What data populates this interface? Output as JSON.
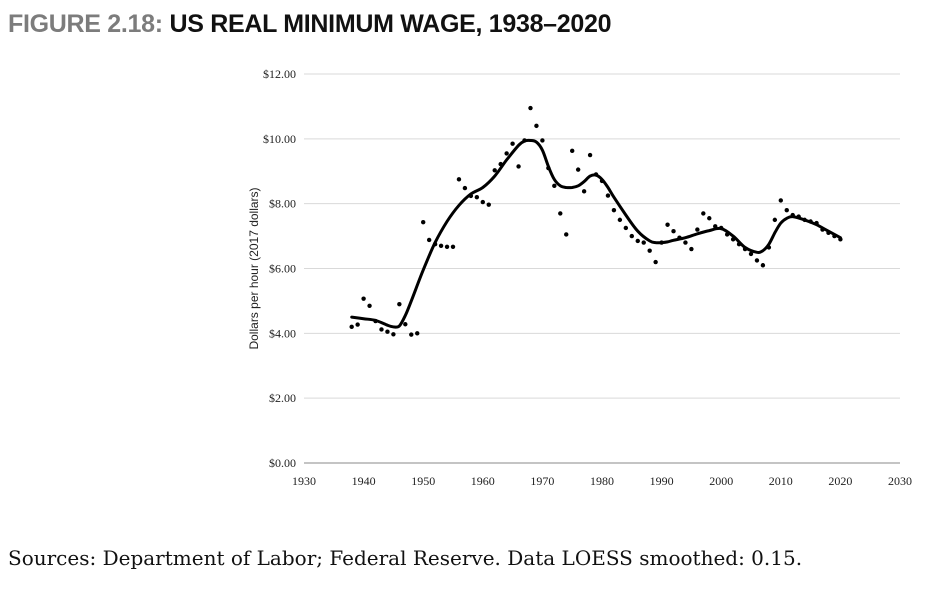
{
  "figure": {
    "label": "FIGURE 2.18:",
    "title": "US REAL MINIMUM WAGE, 1938–2020"
  },
  "source_note": "Sources: Department of Labor; Federal Reserve. Data LOESS smoothed: 0.15.",
  "colors": {
    "title_label": "#7c7c7c",
    "text": "#111111",
    "gridline": "#d9d9d9",
    "series": "#000000"
  },
  "chart_data": {
    "type": "scatter",
    "title": "US REAL MINIMUM WAGE, 1938–2020",
    "ylabel": "Dollars per hour (2017 dollars)",
    "xlabel": "",
    "xlim": [
      1930,
      2030
    ],
    "ylim": [
      0,
      12
    ],
    "grid": {
      "horizontal": true,
      "vertical": false
    },
    "x_ticks": [
      "1930",
      "1940",
      "1950",
      "1960",
      "1970",
      "1980",
      "1990",
      "2000",
      "2010",
      "2020",
      "2030"
    ],
    "y_ticks": [
      "$0.00",
      "$2.00",
      "$4.00",
      "$6.00",
      "$8.00",
      "$10.00",
      "$12.00"
    ],
    "series": [
      {
        "kind": "points",
        "x": [
          1938,
          1939,
          1940,
          1941,
          1942,
          1943,
          1944,
          1945,
          1946,
          1947,
          1948,
          1949,
          1950,
          1951,
          1952,
          1953,
          1954,
          1955,
          1956,
          1957,
          1958,
          1959,
          1960,
          1961,
          1962,
          1963,
          1964,
          1965,
          1966,
          1967,
          1968,
          1969,
          1970,
          1971,
          1972,
          1973,
          1974,
          1975,
          1976,
          1977,
          1978,
          1979,
          1980,
          1981,
          1982,
          1983,
          1984,
          1985,
          1986,
          1987,
          1988,
          1989,
          1990,
          1991,
          1992,
          1993,
          1994,
          1995,
          1996,
          1997,
          1998,
          1999,
          2000,
          2001,
          2002,
          2003,
          2004,
          2005,
          2006,
          2007,
          2008,
          2009,
          2010,
          2011,
          2012,
          2013,
          2014,
          2015,
          2016,
          2017,
          2018,
          2019,
          2020
        ],
        "y": [
          4.2,
          4.27,
          5.07,
          4.85,
          4.38,
          4.12,
          4.05,
          3.97,
          4.9,
          4.28,
          3.96,
          4.0,
          7.43,
          6.88,
          6.75,
          6.7,
          6.67,
          6.67,
          8.75,
          8.48,
          8.24,
          8.2,
          8.05,
          7.97,
          9.03,
          9.22,
          9.55,
          9.85,
          9.15,
          9.95,
          10.95,
          10.4,
          9.95,
          9.1,
          8.55,
          7.7,
          7.05,
          9.63,
          9.05,
          8.38,
          9.5,
          8.9,
          8.7,
          8.25,
          7.8,
          7.5,
          7.25,
          7.0,
          6.85,
          6.8,
          6.55,
          6.2,
          6.8,
          7.35,
          7.15,
          6.95,
          6.8,
          6.6,
          7.2,
          7.7,
          7.55,
          7.3,
          7.25,
          7.05,
          6.9,
          6.75,
          6.6,
          6.45,
          6.25,
          6.1,
          6.65,
          7.5,
          8.1,
          7.8,
          7.65,
          7.6,
          7.5,
          7.45,
          7.4,
          7.2,
          7.1,
          7.0,
          6.9
        ]
      },
      {
        "kind": "loess_line",
        "x": [
          1938,
          1940,
          1942,
          1944,
          1945,
          1946,
          1947,
          1948,
          1950,
          1952,
          1954,
          1956,
          1958,
          1960,
          1962,
          1964,
          1966,
          1967,
          1968,
          1969,
          1970,
          1971,
          1972,
          1973,
          1974,
          1975,
          1976,
          1977,
          1978,
          1979,
          1980,
          1981,
          1982,
          1984,
          1986,
          1988,
          1989,
          1990,
          1991,
          1992,
          1994,
          1996,
          1998,
          2000,
          2002,
          2004,
          2006,
          2007,
          2008,
          2009,
          2010,
          2011,
          2012,
          2014,
          2016,
          2018,
          2020
        ],
        "y": [
          4.5,
          4.45,
          4.4,
          4.25,
          4.2,
          4.23,
          4.55,
          5.0,
          5.95,
          6.8,
          7.45,
          7.95,
          8.3,
          8.5,
          8.85,
          9.35,
          9.8,
          9.93,
          9.95,
          9.9,
          9.65,
          9.15,
          8.75,
          8.55,
          8.5,
          8.5,
          8.55,
          8.68,
          8.85,
          8.88,
          8.75,
          8.5,
          8.2,
          7.65,
          7.15,
          6.85,
          6.8,
          6.8,
          6.82,
          6.87,
          6.95,
          7.07,
          7.17,
          7.23,
          7.0,
          6.65,
          6.5,
          6.55,
          6.75,
          7.1,
          7.4,
          7.55,
          7.6,
          7.5,
          7.35,
          7.15,
          6.95
        ]
      }
    ]
  }
}
